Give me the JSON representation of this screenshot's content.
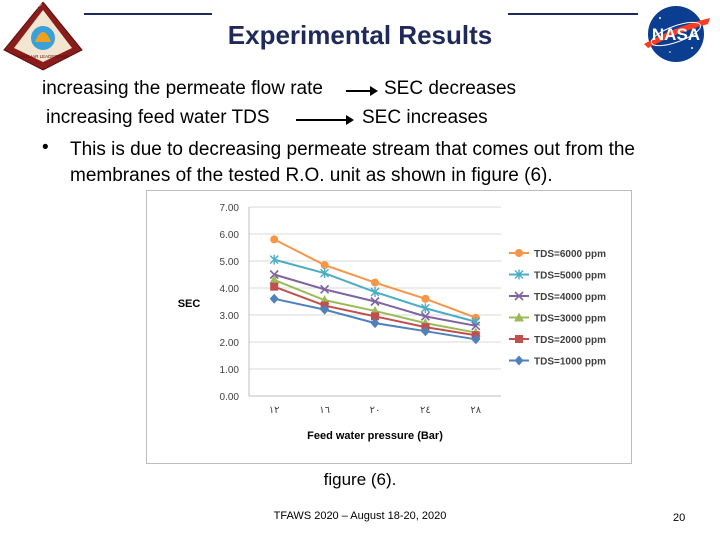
{
  "slide": {
    "title": "Experimental Results",
    "line1_left": "increasing the permeate flow rate",
    "line1_right": "SEC decreases",
    "line2_left": "increasing feed water TDS",
    "line2_right": "SEC increases",
    "bullet_char": "•",
    "bullet_text": "This is due to decreasing permeate stream that comes out from the membranes of the tested R.O. unit as shown in figure (6).",
    "caption": "figure (6).",
    "footer": "TFAWS 2020 – August 18-20, 2020",
    "page_number": "20"
  },
  "logo_left": {
    "name": "tfaws-logo",
    "text_top": "THERMAL & FLUIDS ANALYSIS",
    "text_bottom": "WORKSHOP",
    "text_banner": "FAMILIAR LEADERSHIP"
  },
  "logo_right": {
    "name": "nasa-logo",
    "text": "NASA"
  },
  "colors": {
    "title": "#1f2a5a",
    "tds6000": "#f79646",
    "tds5000": "#4bacc6",
    "tds4000": "#8064a2",
    "tds3000": "#9bbb59",
    "tds2000": "#c0504d",
    "tds1000": "#4f81bd"
  },
  "chart_data": {
    "type": "line",
    "title": "",
    "xlabel": "Feed water pressure (Bar)",
    "ylabel": "SEC",
    "categories": [
      "١٢",
      "١٦",
      "٢٠",
      "٢٤",
      "٢٨"
    ],
    "yticks": [
      "0.00",
      "1.00",
      "2.00",
      "3.00",
      "4.00",
      "5.00",
      "6.00",
      "7.00"
    ],
    "ylim": [
      0,
      7
    ],
    "grid": true,
    "legend_position": "right",
    "series": [
      {
        "name": "TDS=6000  ppm",
        "marker": "circle",
        "values": [
          5.8,
          4.85,
          4.2,
          3.6,
          2.9
        ]
      },
      {
        "name": "TDS=5000 ppm",
        "marker": "star",
        "values": [
          5.05,
          4.55,
          3.85,
          3.25,
          2.75
        ]
      },
      {
        "name": "TDS=4000 ppm",
        "marker": "x",
        "values": [
          4.5,
          3.95,
          3.5,
          2.95,
          2.6
        ]
      },
      {
        "name": "TDS=3000 ppm",
        "marker": "triangle",
        "values": [
          4.3,
          3.55,
          3.15,
          2.7,
          2.35
        ]
      },
      {
        "name": "TDS=2000 ppm",
        "marker": "square",
        "values": [
          4.05,
          3.35,
          2.95,
          2.55,
          2.25
        ]
      },
      {
        "name": "TDS=1000 ppm",
        "marker": "diamond",
        "values": [
          3.6,
          3.2,
          2.7,
          2.4,
          2.1
        ]
      }
    ]
  }
}
